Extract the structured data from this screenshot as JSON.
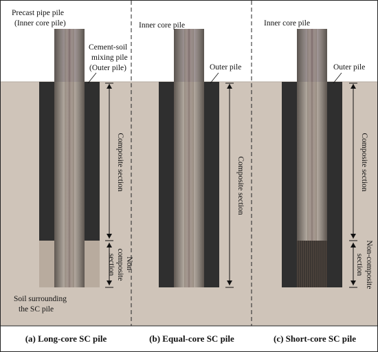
{
  "labels": {
    "a_inner": [
      "Precast pipe pile",
      "(Inner core pile)"
    ],
    "a_outer": [
      "Cement-soil",
      "mixing pile",
      "(Outer pile)"
    ],
    "a_composite": "Composite section",
    "a_noncomposite": [
      "Non-",
      "composite",
      "section"
    ],
    "soil": [
      "Soil surrounding",
      "the SC pile"
    ],
    "b_inner": "Inner core pile",
    "b_outer": "Outer pile",
    "b_composite": "Composite section",
    "c_inner": "Inner core pile",
    "c_outer": "Outer pile",
    "c_composite": "Composite section",
    "c_noncomposite": [
      "Non-composite",
      "section"
    ]
  },
  "captions": {
    "a": "(a) Long-core SC pile",
    "b": "(b) Equal-core SC pile",
    "c": "(c) Short-core SC pile"
  },
  "colors": {
    "soil": "#cfc4b9",
    "sky": "#ffffff",
    "outer_pile": "#2f2f2f",
    "border": "#222222"
  }
}
